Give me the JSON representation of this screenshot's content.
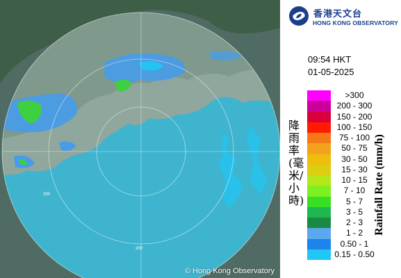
{
  "map": {
    "range_label": "200",
    "copyright": "© Hong Kong Observatory"
  },
  "logo": {
    "name_zh": "香港天文台",
    "name_en": "HONG KONG OBSERVATORY"
  },
  "time": "09:54 HKT",
  "date": "01-05-2025",
  "legend": {
    "title_zh": "降雨率(毫米/小時)",
    "title_en": "Rainfall Rate (mm/h)",
    "levels": [
      {
        "label": ">300",
        "color": "#ff00ff"
      },
      {
        "label": "200 - 300",
        "color": "#cc0099"
      },
      {
        "label": "150 - 200",
        "color": "#d9003c"
      },
      {
        "label": "100 - 150",
        "color": "#ff1a00"
      },
      {
        "label": "75 - 100",
        "color": "#f47a18"
      },
      {
        "label": "50 - 75",
        "color": "#f2a21c"
      },
      {
        "label": "30 - 50",
        "color": "#efbd0c"
      },
      {
        "label": "15 - 30",
        "color": "#dcce10"
      },
      {
        "label": "10 - 15",
        "color": "#b4e81a"
      },
      {
        "label": "7 - 10",
        "color": "#7ef020"
      },
      {
        "label": "5 - 7",
        "color": "#38e024"
      },
      {
        "label": "3 - 5",
        "color": "#1fb850"
      },
      {
        "label": "2 - 3",
        "color": "#188a44"
      },
      {
        "label": "1 - 2",
        "color": "#5aa8ee"
      },
      {
        "label": "0.50 - 1",
        "color": "#1c84ea"
      },
      {
        "label": "0.15 - 0.50",
        "color": "#22c6f4"
      }
    ]
  }
}
